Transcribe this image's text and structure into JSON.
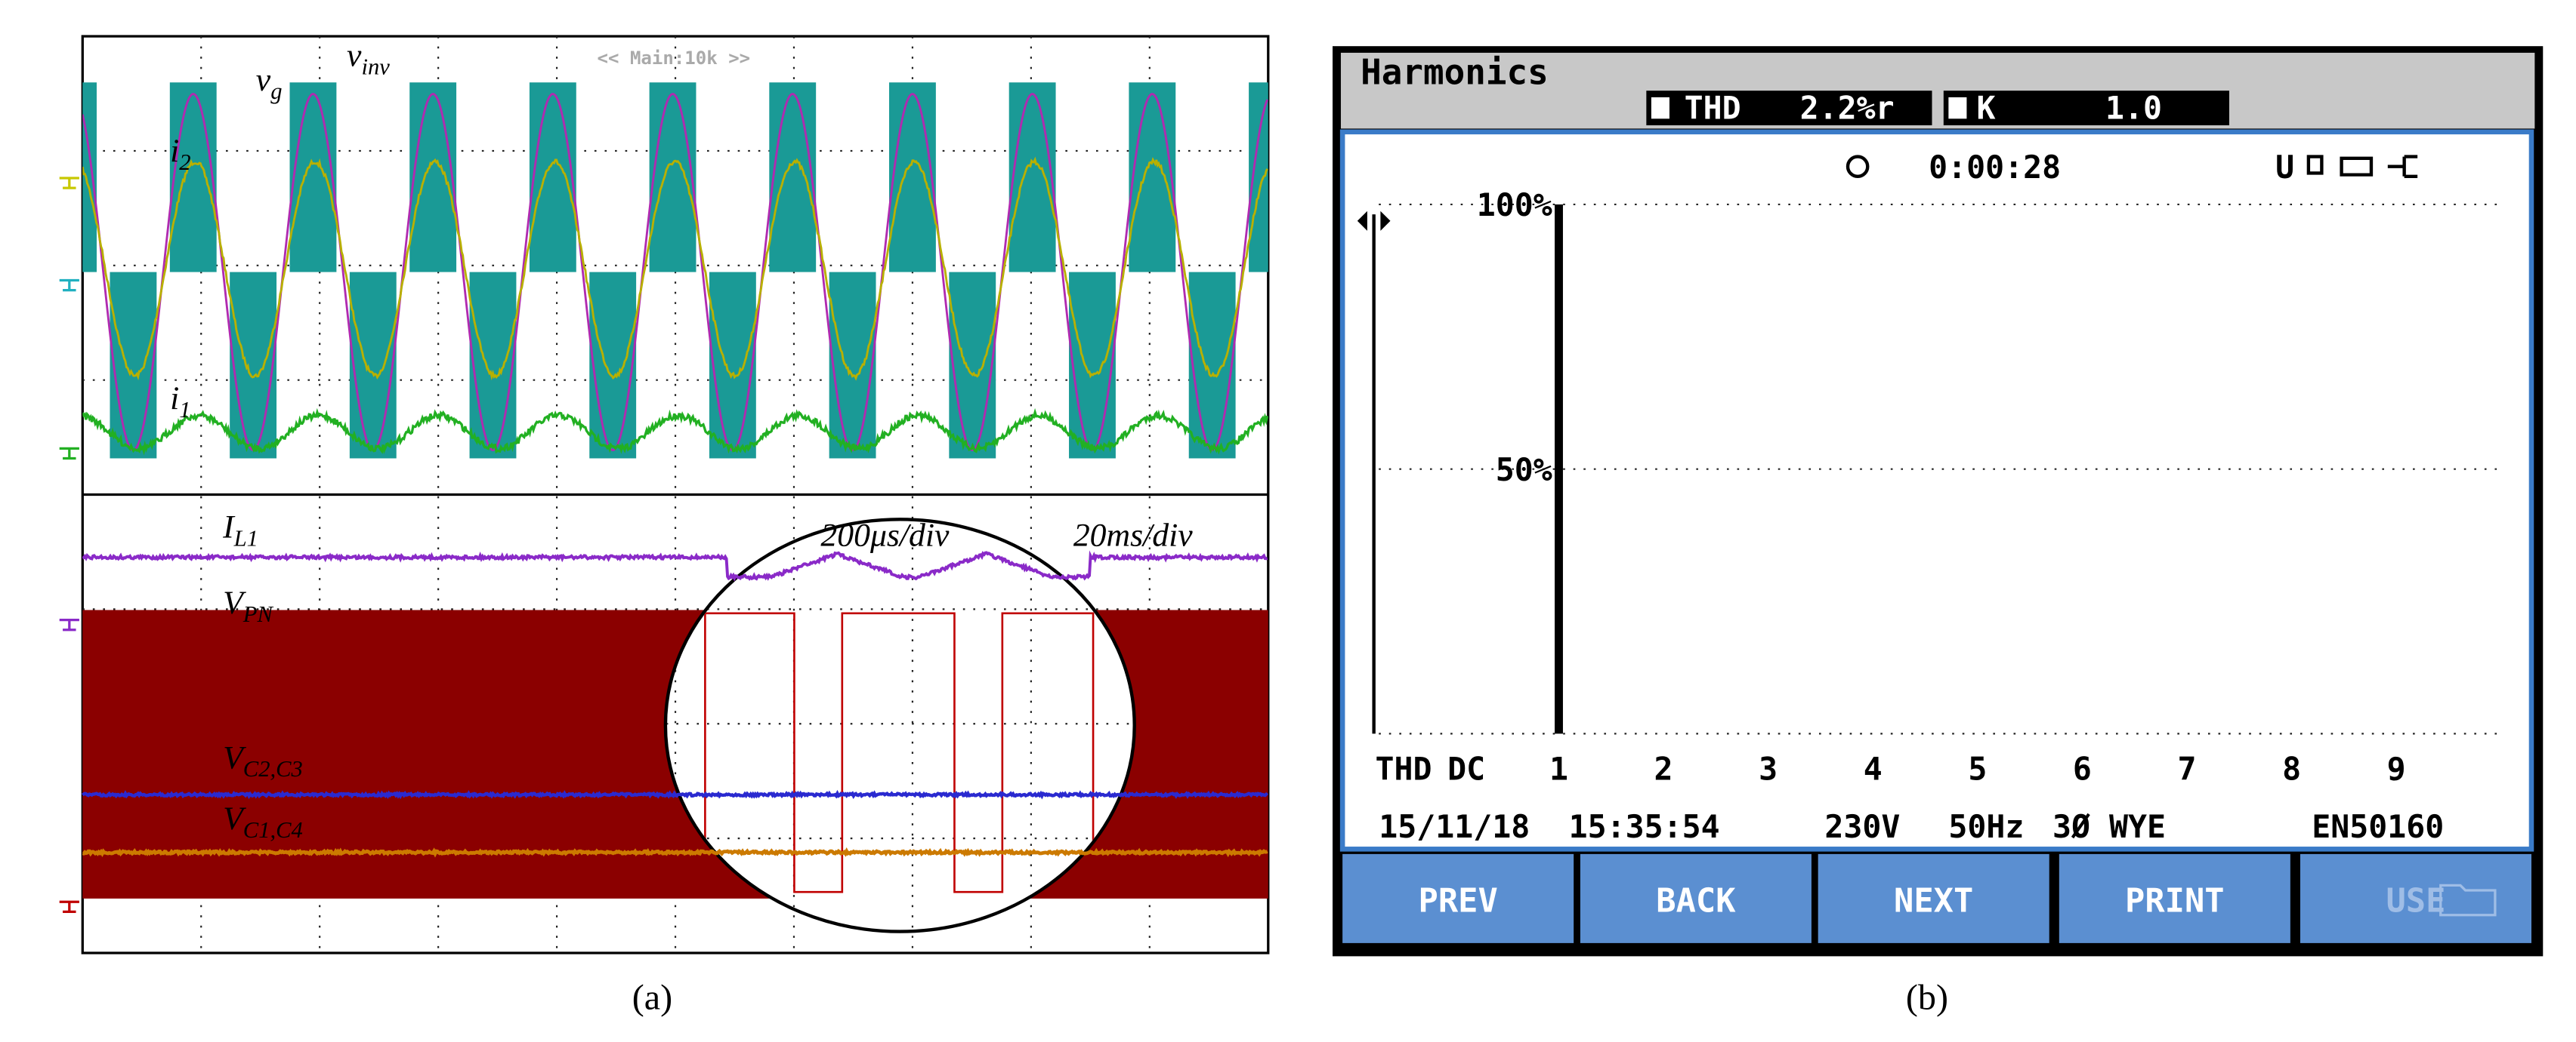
{
  "panel_a": {
    "timebase": "<< Main:10k >>",
    "signals": [
      {
        "base": "v",
        "sub": "g"
      },
      {
        "base": "v",
        "sub": "inv"
      },
      {
        "base": "i",
        "sub": "2"
      },
      {
        "base": "i",
        "sub": "1"
      },
      {
        "base": "I",
        "sub": "L1"
      },
      {
        "base": "V",
        "sub": "PN"
      },
      {
        "base": "V",
        "sub": "C2,C3"
      },
      {
        "base": "V",
        "sub": "C1,C4"
      }
    ],
    "zoom_scale": "200μs/div",
    "main_scale": "20ms/div",
    "caption": "(a)"
  },
  "panel_b": {
    "title": "Harmonics",
    "thd_label": "THD",
    "thd_value": "2.2%r",
    "k_label": "K",
    "k_value": "1.0",
    "elapsed": "0:00:28",
    "mode": "U",
    "spectrum": {
      "type": "bar",
      "categories": [
        "THD",
        "DC",
        "1",
        "2",
        "3",
        "4",
        "5",
        "6",
        "7",
        "8",
        "9"
      ],
      "values": [
        null,
        null,
        100,
        0,
        0,
        0,
        0,
        0,
        0,
        0,
        0
      ],
      "ylim": [
        0,
        100
      ],
      "yticks": [
        {
          "value": 50,
          "label": "50%"
        },
        {
          "value": 100,
          "label": "100%"
        }
      ]
    },
    "status": [
      "15/11/18",
      "15:35:54",
      "230V",
      "50Hz",
      "3Ø WYE",
      "EN50160"
    ],
    "buttons": [
      "PREV",
      "BACK",
      "NEXT",
      "PRINT",
      "USE"
    ],
    "caption": "(b)"
  }
}
